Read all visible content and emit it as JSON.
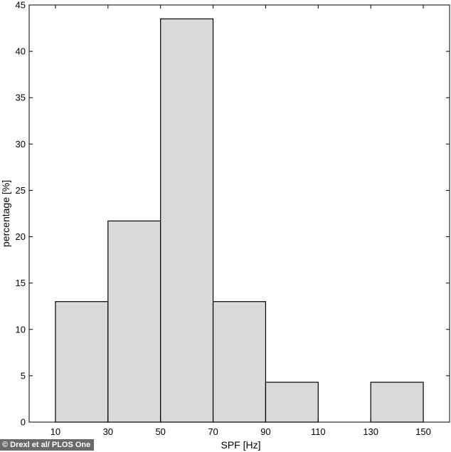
{
  "chart_data": {
    "type": "bar",
    "bins": [
      {
        "x0": 10,
        "x1": 30,
        "value": 13.0
      },
      {
        "x0": 30,
        "x1": 50,
        "value": 21.7
      },
      {
        "x0": 50,
        "x1": 70,
        "value": 43.5
      },
      {
        "x0": 70,
        "x1": 90,
        "value": 13.0
      },
      {
        "x0": 90,
        "x1": 110,
        "value": 4.3
      },
      {
        "x0": 110,
        "x1": 130,
        "value": 0
      },
      {
        "x0": 130,
        "x1": 150,
        "value": 4.3
      }
    ],
    "xlabel": "SPF [Hz]",
    "ylabel": "percentage [%]",
    "xlim": [
      0,
      160
    ],
    "ylim": [
      0,
      45
    ],
    "xticks": [
      10,
      30,
      50,
      70,
      90,
      110,
      130,
      150
    ],
    "yticks": [
      0,
      5,
      10,
      15,
      20,
      25,
      30,
      35,
      40,
      45
    ],
    "grid": false,
    "bar_color": "#d9d9d9",
    "edge_color": "#000000"
  },
  "credit": "© Drexl et al/ PLOS One"
}
